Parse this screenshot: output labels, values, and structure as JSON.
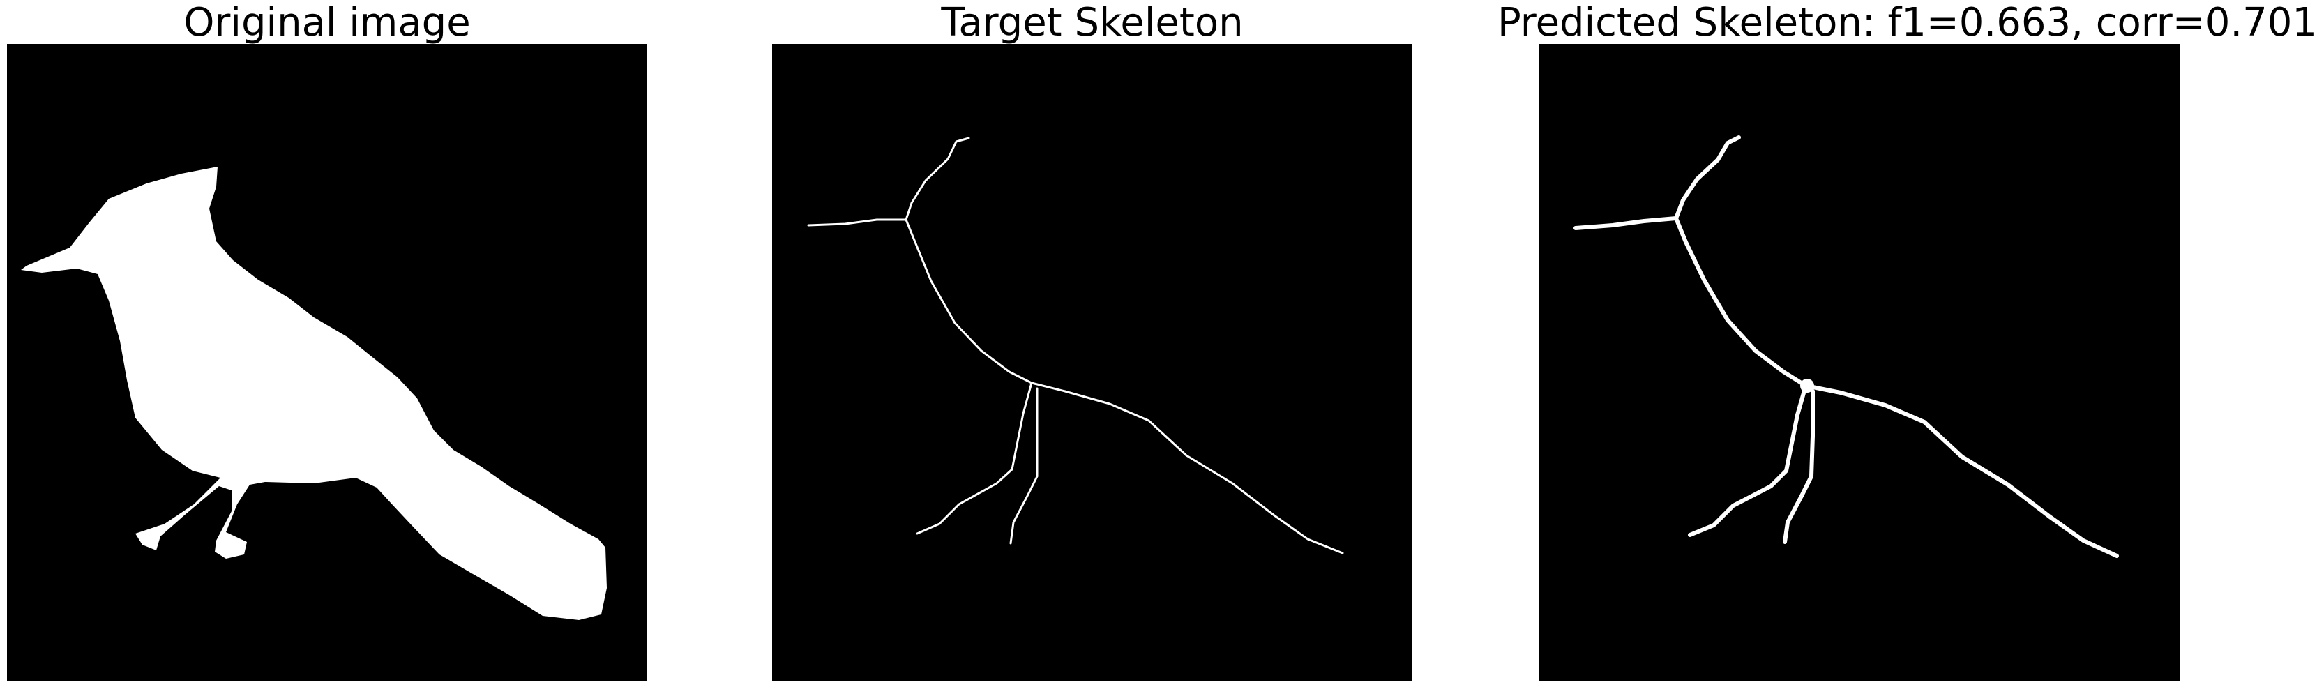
{
  "panels": [
    {
      "title": "Original image"
    },
    {
      "title": "Target Skeleton"
    },
    {
      "title": "Predicted Skeleton: f1=0.663, corr=0.701"
    }
  ],
  "colors": {
    "background": "#000000",
    "foreground": "#ffffff",
    "page": "#ffffff"
  }
}
